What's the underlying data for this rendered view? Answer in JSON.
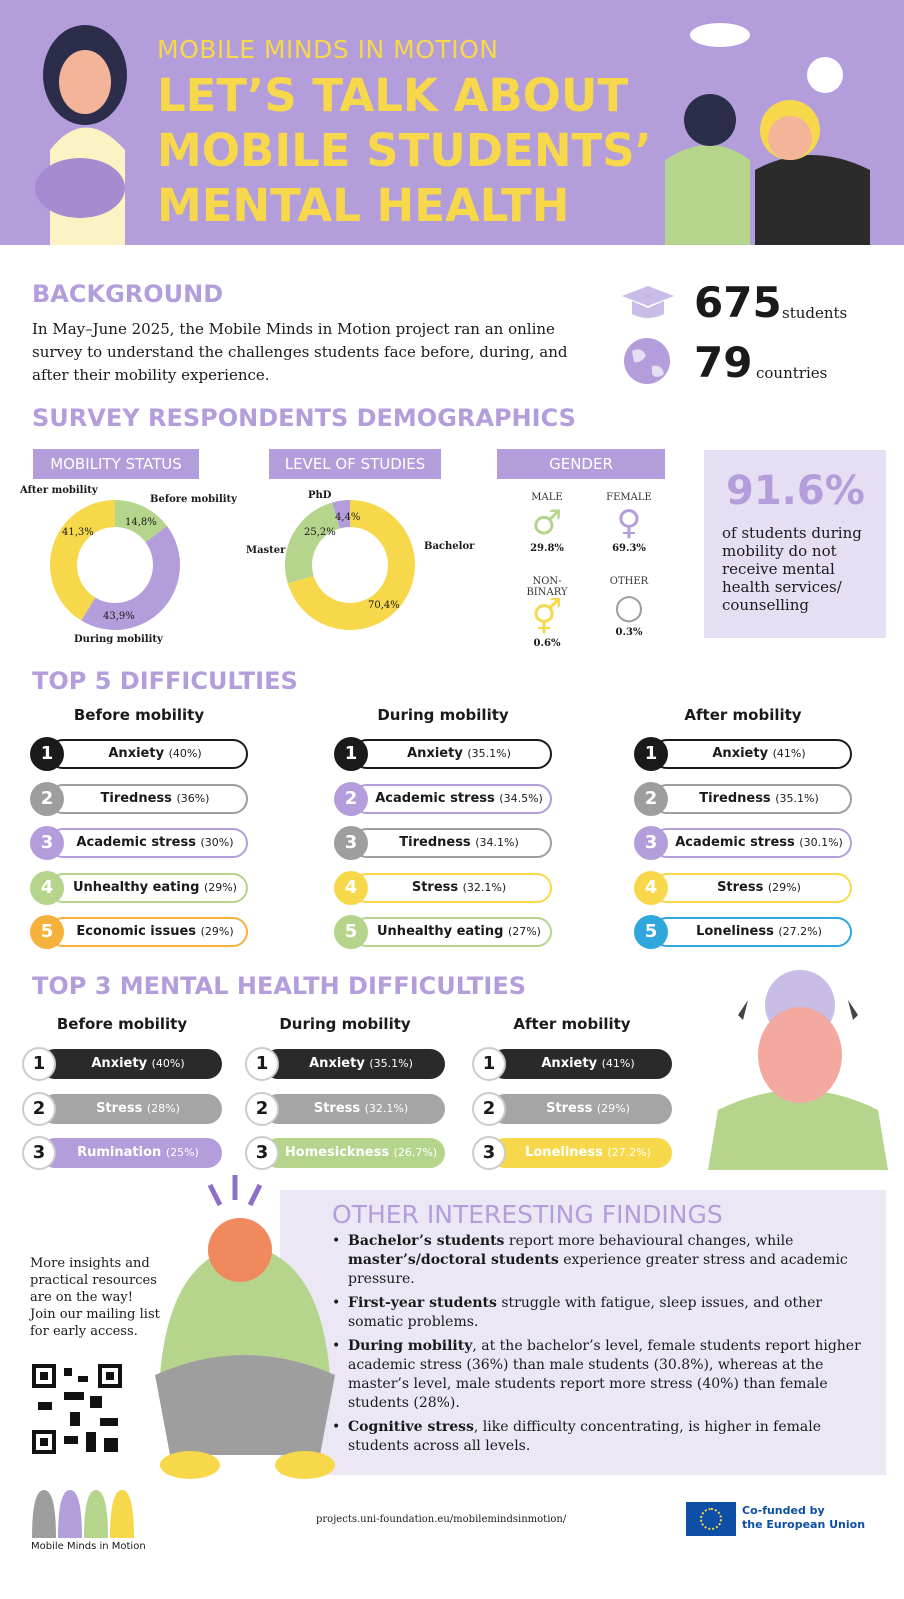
{
  "header": {
    "kicker": "MOBILE MINDS IN MOTION",
    "title_lines": [
      "LET’S TALK ABOUT",
      "MOBILE STUDENTS’",
      "MENTAL HEALTH"
    ]
  },
  "background": {
    "heading": "BACKGROUND",
    "text": "In May–June 2025, the Mobile Minds in Motion project ran an online survey to understand the challenges students face before, during, and after their mobility experience.",
    "students_value": "675",
    "students_unit": "students",
    "countries_value": "79",
    "countries_unit": "countries"
  },
  "demographics": {
    "heading": "SURVEY RESPONDENTS DEMOGRAPHICS",
    "mobility_tag": "MOBILITY STATUS",
    "level_tag": "LEVEL OF STUDIES",
    "gender_tag": "GENDER",
    "gender": [
      {
        "label": "MALE",
        "value": "29.8%",
        "symbol": "♂",
        "color": "#b5d48c"
      },
      {
        "label": "FEMALE",
        "value": "69.3%",
        "symbol": "♀",
        "color": "#b39ddb"
      },
      {
        "label": "NON-BINARY",
        "value": "0.6%",
        "symbol": "⚥",
        "color": "#f7d84a"
      },
      {
        "label": "OTHER",
        "value": "0.3%",
        "symbol": "○",
        "color": "#9e9e9e"
      }
    ],
    "callout_value": "91.6%",
    "callout_text": "of students during mobility do not receive mental health services/ counselling"
  },
  "chart_data": [
    {
      "type": "pie",
      "title": "MOBILITY STATUS",
      "categories": [
        "Before mobility",
        "During mobility",
        "After mobility"
      ],
      "values": [
        14.8,
        43.9,
        41.3
      ],
      "labels": [
        "14,8%",
        "43,9%",
        "41,3%"
      ],
      "colors": [
        "#b5d48c",
        "#b39ddb",
        "#f7d84a"
      ]
    },
    {
      "type": "pie",
      "title": "LEVEL OF STUDIES",
      "categories": [
        "Bachelor",
        "Master",
        "PhD"
      ],
      "values": [
        70.4,
        25.2,
        4.4
      ],
      "labels": [
        "70,4%",
        "25,2%",
        "4,4%"
      ],
      "colors": [
        "#f7d84a",
        "#b5d48c",
        "#b39ddb"
      ]
    }
  ],
  "top5": {
    "heading": "TOP 5 DIFFICULTIES",
    "columns": [
      {
        "title": "Before mobility",
        "items": [
          {
            "rank": "1",
            "label": "Anxiety",
            "pct": "(40%)",
            "color": "#1a1a1a"
          },
          {
            "rank": "2",
            "label": "Tiredness",
            "pct": "(36%)",
            "color": "#9e9e9e"
          },
          {
            "rank": "3",
            "label": "Academic stress",
            "pct": "(30%)",
            "color": "#b39ddb"
          },
          {
            "rank": "4",
            "label": "Unhealthy eating",
            "pct": "(29%)",
            "color": "#b5d48c"
          },
          {
            "rank": "5",
            "label": "Economic issues",
            "pct": "(29%)",
            "color": "#f6b13c"
          }
        ]
      },
      {
        "title": "During mobility",
        "items": [
          {
            "rank": "1",
            "label": "Anxiety",
            "pct": "(35.1%)",
            "color": "#1a1a1a"
          },
          {
            "rank": "2",
            "label": "Academic stress",
            "pct": "(34.5%)",
            "color": "#b39ddb"
          },
          {
            "rank": "3",
            "label": "Tiredness",
            "pct": "(34.1%)",
            "color": "#9e9e9e"
          },
          {
            "rank": "4",
            "label": "Stress",
            "pct": "(32.1%)",
            "color": "#f7d84a"
          },
          {
            "rank": "5",
            "label": "Unhealthy eating",
            "pct": "(27%)",
            "color": "#b5d48c"
          }
        ]
      },
      {
        "title": "After mobility",
        "items": [
          {
            "rank": "1",
            "label": "Anxiety",
            "pct": "(41%)",
            "color": "#1a1a1a"
          },
          {
            "rank": "2",
            "label": "Tiredness",
            "pct": "(35.1%)",
            "color": "#9e9e9e"
          },
          {
            "rank": "3",
            "label": "Academic stress",
            "pct": "(30.1%)",
            "color": "#b39ddb"
          },
          {
            "rank": "4",
            "label": "Stress",
            "pct": "(29%)",
            "color": "#f7d84a"
          },
          {
            "rank": "5",
            "label": "Loneliness",
            "pct": "(27.2%)",
            "color": "#2fa6dc"
          }
        ]
      }
    ]
  },
  "top3": {
    "heading": "TOP 3 MENTAL HEALTH DIFFICULTIES",
    "columns": [
      {
        "title": "Before mobility",
        "items": [
          {
            "rank": "1",
            "label": "Anxiety",
            "pct": "(40%)",
            "color": "#2a2a2a"
          },
          {
            "rank": "2",
            "label": "Stress",
            "pct": "(28%)",
            "color": "#a5a5a5"
          },
          {
            "rank": "3",
            "label": "Rumination",
            "pct": "(25%)",
            "color": "#b39ddb"
          }
        ]
      },
      {
        "title": "During mobility",
        "items": [
          {
            "rank": "1",
            "label": "Anxiety",
            "pct": "(35.1%)",
            "color": "#2a2a2a"
          },
          {
            "rank": "2",
            "label": "Stress",
            "pct": "(32.1%)",
            "color": "#a5a5a5"
          },
          {
            "rank": "3",
            "label": "Homesickness",
            "pct": "(26.7%)",
            "color": "#b5d48c"
          }
        ]
      },
      {
        "title": "After mobility",
        "items": [
          {
            "rank": "1",
            "label": "Anxiety",
            "pct": "(41%)",
            "color": "#2a2a2a"
          },
          {
            "rank": "2",
            "label": "Stress",
            "pct": "(29%)",
            "color": "#a5a5a5"
          },
          {
            "rank": "3",
            "label": "Loneliness",
            "pct": "(27.2%)",
            "color": "#f7d84a"
          }
        ]
      }
    ]
  },
  "findings": {
    "heading": "OTHER INTERESTING FINDINGS",
    "b1": {
      "bold1": "Bachelor’s students",
      "text1": " report more behavioural changes, while ",
      "bold2": "master’s/doctoral students",
      "text2": " experience greater stress and academic pressure."
    },
    "b2": {
      "bold": "First-year students",
      "text": " struggle with fatigue, sleep issues, and other somatic problems."
    },
    "b3": {
      "bold": "During mobility",
      "text": ", at the bachelor’s level, female students report higher academic stress (36%) than male students (30.8%), whereas at the master’s level, male students report more stress (40%) than female students (28%)."
    },
    "b4": {
      "bold": "Cognitive stress",
      "text": ", like difficulty concentrating, is higher in female students across all levels."
    }
  },
  "sidebar_text": "More insights and practical resources are on the way! Join our mailing list for early access.",
  "footer": {
    "logo_text": "Mobile Minds in Motion",
    "url": "projects.uni-foundation.eu/mobilemindsinmotion/",
    "eu_text_1": "Co-funded by",
    "eu_text_2": "the European Union"
  }
}
